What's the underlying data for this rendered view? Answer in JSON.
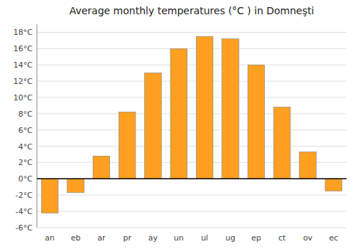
{
  "chart_data": {
    "type": "bar",
    "title": "Average monthly temperatures (°C ) in Domneşti",
    "categories": [
      "an",
      "eb",
      "ar",
      "pr",
      "ay",
      "un",
      "ul",
      "ug",
      "ep",
      "ct",
      "ov",
      "ec"
    ],
    "values": [
      -4.2,
      -1.7,
      2.8,
      8.2,
      13.0,
      16.0,
      17.5,
      17.2,
      14.0,
      8.8,
      3.3,
      -1.5
    ],
    "color": "#FFA020",
    "ylim": [
      -6,
      19
    ],
    "yticks": [
      {
        "value": -6,
        "label": "-6°C"
      },
      {
        "value": -4,
        "label": "-4°C"
      },
      {
        "value": -2,
        "label": "-2°C"
      },
      {
        "value": 0,
        "label": "0°C"
      },
      {
        "value": 2,
        "label": "2°C"
      },
      {
        "value": 4,
        "label": "4°C"
      },
      {
        "value": 6,
        "label": "6°C"
      },
      {
        "value": 8,
        "label": "8°C"
      },
      {
        "value": 10,
        "label": "10°C"
      },
      {
        "value": 12,
        "label": "12°C"
      },
      {
        "value": 14,
        "label": "14°C"
      },
      {
        "value": 16,
        "label": "16°C"
      },
      {
        "value": 18,
        "label": "18°C"
      }
    ],
    "grid": true
  }
}
